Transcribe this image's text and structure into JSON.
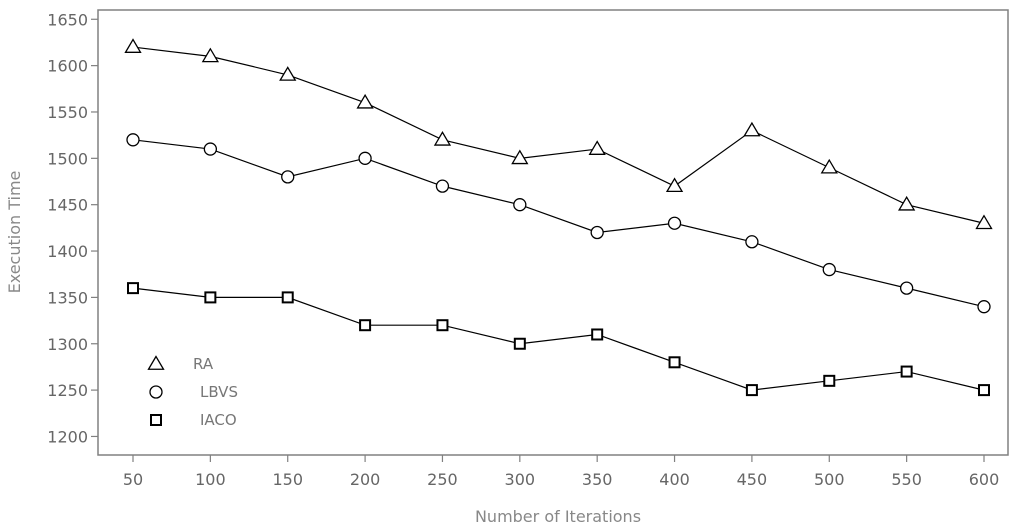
{
  "chart_data": {
    "type": "line",
    "title": "",
    "xlabel": "Number of Iterations",
    "ylabel": "Execution Time",
    "x": [
      50,
      100,
      150,
      200,
      250,
      300,
      350,
      400,
      450,
      500,
      550,
      600
    ],
    "ylim": [
      1180,
      1660
    ],
    "yticks": [
      1200,
      1250,
      1300,
      1350,
      1400,
      1450,
      1500,
      1550,
      1600,
      1650
    ],
    "grid": false,
    "legend_position": "bottom-left",
    "series": [
      {
        "name": "RA",
        "marker": "triangle",
        "values": [
          1620,
          1610,
          1590,
          1560,
          1520,
          1500,
          1510,
          1470,
          1530,
          1490,
          1450,
          1430
        ]
      },
      {
        "name": "LBVS",
        "marker": "circle",
        "values": [
          1520,
          1510,
          1480,
          1500,
          1470,
          1450,
          1420,
          1430,
          1410,
          1380,
          1360,
          1340
        ]
      },
      {
        "name": "IACO",
        "marker": "square",
        "values": [
          1360,
          1350,
          1350,
          1320,
          1320,
          1300,
          1310,
          1280,
          1250,
          1260,
          1270,
          1250
        ]
      }
    ]
  }
}
